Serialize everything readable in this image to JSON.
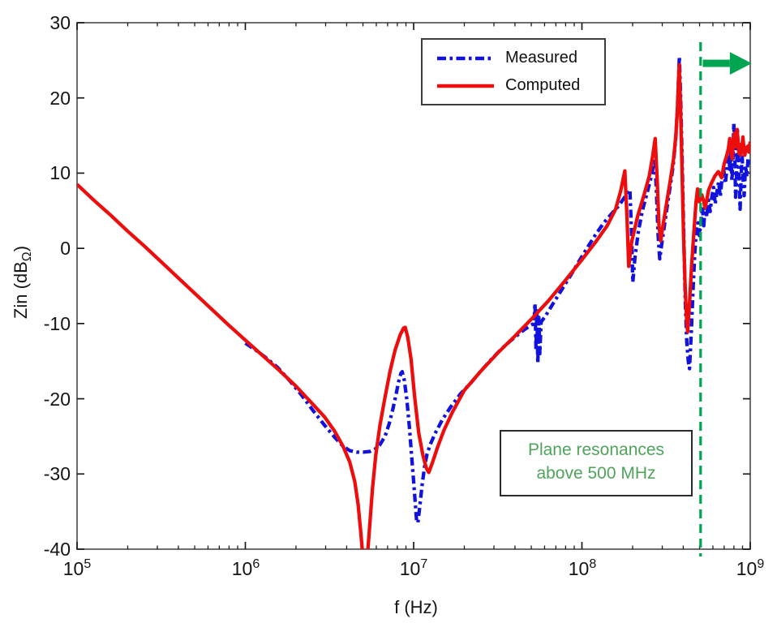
{
  "chart_data": {
    "type": "line",
    "title": "",
    "xlabel": "f (Hz)",
    "ylabel": {
      "text": "Zin (dB",
      "sub": "Ω",
      "close": ")"
    },
    "x_scale": "log10",
    "x_range_log10": [
      5,
      9
    ],
    "ylim": [
      -40,
      30
    ],
    "grid": false,
    "x_ticks": [
      {
        "base": "10",
        "exp": "5"
      },
      {
        "base": "10",
        "exp": "6"
      },
      {
        "base": "10",
        "exp": "7"
      },
      {
        "base": "10",
        "exp": "8"
      },
      {
        "base": "10",
        "exp": "9"
      }
    ],
    "y_ticks": [
      "30",
      "20",
      "10",
      "0",
      "-10",
      "-20",
      "-30",
      "-40"
    ],
    "legend": {
      "position": "top-center-inside",
      "border": true
    },
    "series": [
      {
        "name": "Measured",
        "color": "#1212df",
        "style": "dash-dot",
        "points": [
          [
            6.0,
            -12.6
          ],
          [
            6.06,
            -13.5
          ],
          [
            6.12,
            -14.5
          ],
          [
            6.19,
            -15.8
          ],
          [
            6.26,
            -17.5
          ],
          [
            6.33,
            -19.4
          ],
          [
            6.4,
            -21.5
          ],
          [
            6.47,
            -23.5
          ],
          [
            6.53,
            -25.1
          ],
          [
            6.58,
            -26.3
          ],
          [
            6.62,
            -26.9
          ],
          [
            6.66,
            -27.1
          ],
          [
            6.7,
            -27.1
          ],
          [
            6.74,
            -27.0
          ],
          [
            6.77,
            -26.7
          ],
          [
            6.8,
            -26.1
          ],
          [
            6.83,
            -25.0
          ],
          [
            6.855,
            -23.3
          ],
          [
            6.875,
            -21.5
          ],
          [
            6.895,
            -19.5
          ],
          [
            6.91,
            -17.8
          ],
          [
            6.925,
            -16.6
          ],
          [
            6.932,
            -16.4
          ],
          [
            6.945,
            -17.6
          ],
          [
            6.96,
            -20.2
          ],
          [
            6.975,
            -23.8
          ],
          [
            6.988,
            -27.6
          ],
          [
            7.0,
            -31.0
          ],
          [
            7.01,
            -34.0
          ],
          [
            7.018,
            -36.3
          ],
          [
            7.025,
            -36.5
          ],
          [
            7.035,
            -34.6
          ],
          [
            7.05,
            -31.5
          ],
          [
            7.065,
            -29.0
          ],
          [
            7.08,
            -27.3
          ],
          [
            7.1,
            -26.0
          ],
          [
            7.13,
            -24.5
          ],
          [
            7.17,
            -22.8
          ],
          [
            7.22,
            -21.1
          ],
          [
            7.28,
            -19.3
          ],
          [
            7.34,
            -17.9
          ],
          [
            7.4,
            -16.3
          ],
          [
            7.46,
            -14.8
          ],
          [
            7.52,
            -13.4
          ],
          [
            7.58,
            -12.2
          ],
          [
            7.64,
            -11.1
          ],
          [
            7.69,
            -10.3
          ],
          [
            7.715,
            -10.0
          ],
          [
            7.721,
            -7.3
          ],
          [
            7.727,
            -13.6
          ],
          [
            7.732,
            -7.9
          ],
          [
            7.738,
            -15.3
          ],
          [
            7.744,
            -9.2
          ],
          [
            7.75,
            -14.0
          ],
          [
            7.757,
            -9.8
          ],
          [
            7.78,
            -9.1
          ],
          [
            7.83,
            -7.3
          ],
          [
            7.88,
            -5.5
          ],
          [
            7.93,
            -3.7
          ],
          [
            7.98,
            -1.8
          ],
          [
            8.03,
            0.0
          ],
          [
            8.08,
            1.8
          ],
          [
            8.13,
            3.4
          ],
          [
            8.18,
            4.7
          ],
          [
            8.22,
            5.7
          ],
          [
            8.26,
            7.0
          ],
          [
            8.285,
            7.8
          ],
          [
            8.295,
            2.0
          ],
          [
            8.302,
            -4.5
          ],
          [
            8.315,
            -1.2
          ],
          [
            8.335,
            2.2
          ],
          [
            8.36,
            5.1
          ],
          [
            8.39,
            7.6
          ],
          [
            8.415,
            9.8
          ],
          [
            8.432,
            12.0
          ],
          [
            8.442,
            8.0
          ],
          [
            8.452,
            2.0
          ],
          [
            8.462,
            -1.4
          ],
          [
            8.478,
            1.2
          ],
          [
            8.5,
            4.6
          ],
          [
            8.52,
            7.6
          ],
          [
            8.542,
            11.0
          ],
          [
            8.558,
            14.8
          ],
          [
            8.568,
            19.0
          ],
          [
            8.574,
            22.5
          ],
          [
            8.579,
            25.5
          ],
          [
            8.586,
            20.5
          ],
          [
            8.595,
            12.0
          ],
          [
            8.605,
            2.0
          ],
          [
            8.614,
            -7.0
          ],
          [
            8.623,
            -12.5
          ],
          [
            8.632,
            -15.0
          ],
          [
            8.639,
            -16.0
          ],
          [
            8.65,
            -11.0
          ],
          [
            8.661,
            -5.0
          ],
          [
            8.671,
            -0.5
          ],
          [
            8.681,
            2.8
          ],
          [
            8.69,
            3.4
          ],
          [
            8.698,
            1.7
          ],
          [
            8.707,
            3.6
          ],
          [
            8.716,
            5.5
          ],
          [
            8.724,
            3.0
          ],
          [
            8.733,
            5.8
          ],
          [
            8.742,
            4.2
          ],
          [
            8.752,
            6.4
          ],
          [
            8.762,
            4.9
          ],
          [
            8.772,
            6.9
          ],
          [
            8.782,
            8.1
          ],
          [
            8.792,
            5.9
          ],
          [
            8.802,
            7.5
          ],
          [
            8.812,
            8.8
          ],
          [
            8.822,
            6.9
          ],
          [
            8.832,
            9.2
          ],
          [
            8.842,
            10.5
          ],
          [
            8.852,
            8.6
          ],
          [
            8.862,
            10.8
          ],
          [
            8.872,
            12.5
          ],
          [
            8.879,
            10.5
          ],
          [
            8.885,
            12.8
          ],
          [
            8.891,
            9.0
          ],
          [
            8.897,
            11.5
          ],
          [
            8.902,
            16.6
          ],
          [
            8.908,
            13.5
          ],
          [
            8.913,
            6.8
          ],
          [
            8.918,
            9.0
          ],
          [
            8.924,
            15.7
          ],
          [
            8.93,
            12.0
          ],
          [
            8.935,
            8.5
          ],
          [
            8.94,
            5.2
          ],
          [
            8.946,
            9.5
          ],
          [
            8.952,
            12.4
          ],
          [
            8.958,
            9.0
          ],
          [
            8.964,
            7.0
          ],
          [
            8.972,
            11.0
          ],
          [
            8.98,
            9.5
          ],
          [
            8.987,
            12.0
          ],
          [
            8.994,
            11.0
          ],
          [
            9.0,
            11.5
          ]
        ]
      },
      {
        "name": "Computed",
        "color": "#ed0d0d",
        "style": "solid",
        "points": [
          [
            5.0,
            8.5
          ],
          [
            5.1,
            6.4
          ],
          [
            5.2,
            4.4
          ],
          [
            5.3,
            2.3
          ],
          [
            5.4,
            0.3
          ],
          [
            5.5,
            -1.8
          ],
          [
            5.6,
            -3.9
          ],
          [
            5.7,
            -6.0
          ],
          [
            5.8,
            -8.1
          ],
          [
            5.9,
            -10.2
          ],
          [
            6.0,
            -12.2
          ],
          [
            6.1,
            -14.2
          ],
          [
            6.2,
            -16.2
          ],
          [
            6.3,
            -18.3
          ],
          [
            6.4,
            -20.7
          ],
          [
            6.47,
            -22.4
          ],
          [
            6.53,
            -24.3
          ],
          [
            6.58,
            -26.3
          ],
          [
            6.62,
            -28.4
          ],
          [
            6.65,
            -31.0
          ],
          [
            6.67,
            -34.0
          ],
          [
            6.685,
            -37.5
          ],
          [
            6.7,
            -41.5
          ],
          [
            6.71,
            -44.0
          ],
          [
            6.725,
            -41.0
          ],
          [
            6.74,
            -36.5
          ],
          [
            6.755,
            -32.0
          ],
          [
            6.775,
            -27.5
          ],
          [
            6.8,
            -23.5
          ],
          [
            6.83,
            -19.8
          ],
          [
            6.86,
            -16.3
          ],
          [
            6.89,
            -13.5
          ],
          [
            6.92,
            -11.5
          ],
          [
            6.94,
            -10.6
          ],
          [
            6.95,
            -10.5
          ],
          [
            6.965,
            -11.8
          ],
          [
            6.985,
            -14.8
          ],
          [
            7.005,
            -19.5
          ],
          [
            7.03,
            -24.5
          ],
          [
            7.055,
            -27.5
          ],
          [
            7.075,
            -29.2
          ],
          [
            7.09,
            -29.8
          ],
          [
            7.11,
            -28.6
          ],
          [
            7.14,
            -26.6
          ],
          [
            7.18,
            -24.2
          ],
          [
            7.23,
            -21.8
          ],
          [
            7.3,
            -18.9
          ],
          [
            7.4,
            -16.3
          ],
          [
            7.5,
            -13.9
          ],
          [
            7.6,
            -11.7
          ],
          [
            7.7,
            -9.4
          ],
          [
            7.8,
            -7.0
          ],
          [
            7.9,
            -4.3
          ],
          [
            8.0,
            -1.5
          ],
          [
            8.08,
            0.8
          ],
          [
            8.15,
            3.0
          ],
          [
            8.2,
            5.2
          ],
          [
            8.23,
            7.6
          ],
          [
            8.255,
            10.3
          ],
          [
            8.268,
            4.0
          ],
          [
            8.278,
            -2.4
          ],
          [
            8.295,
            0.8
          ],
          [
            8.33,
            4.2
          ],
          [
            8.37,
            7.2
          ],
          [
            8.4,
            9.6
          ],
          [
            8.42,
            12.2
          ],
          [
            8.435,
            14.6
          ],
          [
            8.447,
            9.0
          ],
          [
            8.458,
            3.0
          ],
          [
            8.468,
            1.0
          ],
          [
            8.485,
            3.5
          ],
          [
            8.505,
            6.3
          ],
          [
            8.525,
            9.0
          ],
          [
            8.545,
            12.0
          ],
          [
            8.558,
            15.0
          ],
          [
            8.567,
            18.5
          ],
          [
            8.573,
            21.8
          ],
          [
            8.578,
            24.4
          ],
          [
            8.585,
            19.5
          ],
          [
            8.594,
            11.0
          ],
          [
            8.603,
            2.5
          ],
          [
            8.613,
            -5.0
          ],
          [
            8.622,
            -9.5
          ],
          [
            8.628,
            -11.1
          ],
          [
            8.64,
            -7.0
          ],
          [
            8.653,
            -1.8
          ],
          [
            8.666,
            2.4
          ],
          [
            8.678,
            6.2
          ],
          [
            8.687,
            7.9
          ],
          [
            8.697,
            6.2
          ],
          [
            8.705,
            6.6
          ],
          [
            8.713,
            7.1
          ],
          [
            8.722,
            6.4
          ],
          [
            8.731,
            5.4
          ],
          [
            8.741,
            6.3
          ],
          [
            8.752,
            7.7
          ],
          [
            8.77,
            8.7
          ],
          [
            8.79,
            9.6
          ],
          [
            8.81,
            10.2
          ],
          [
            8.83,
            9.4
          ],
          [
            8.845,
            11.2
          ],
          [
            8.86,
            12.3
          ],
          [
            8.87,
            13.2
          ],
          [
            8.878,
            14.6
          ],
          [
            8.885,
            13.0
          ],
          [
            8.893,
            11.9
          ],
          [
            8.9,
            14.6
          ],
          [
            8.906,
            15.3
          ],
          [
            8.912,
            13.5
          ],
          [
            8.917,
            14.3
          ],
          [
            8.922,
            15.8
          ],
          [
            8.928,
            14.0
          ],
          [
            8.933,
            12.6
          ],
          [
            8.938,
            13.8
          ],
          [
            8.944,
            12.4
          ],
          [
            8.95,
            13.2
          ],
          [
            8.956,
            14.8
          ],
          [
            8.962,
            13.5
          ],
          [
            8.968,
            12.4
          ],
          [
            8.974,
            13.4
          ],
          [
            8.98,
            13.0
          ],
          [
            8.986,
            13.6
          ],
          [
            8.992,
            12.8
          ],
          [
            9.0,
            14.2
          ]
        ]
      }
    ],
    "annotations": {
      "cutoff_line": {
        "x_log10": 8.705,
        "value": "500 MHz",
        "color": "#00a551",
        "style": "dashed"
      },
      "arrow": {
        "direction": "right",
        "y_db": 24.6,
        "from_log10": 8.718,
        "to_log10": 9.004,
        "color": "#00a551"
      },
      "textbox": {
        "line1": "Plane resonances",
        "line2": "above 500 MHz",
        "text_color": "#4fa45c"
      }
    }
  }
}
